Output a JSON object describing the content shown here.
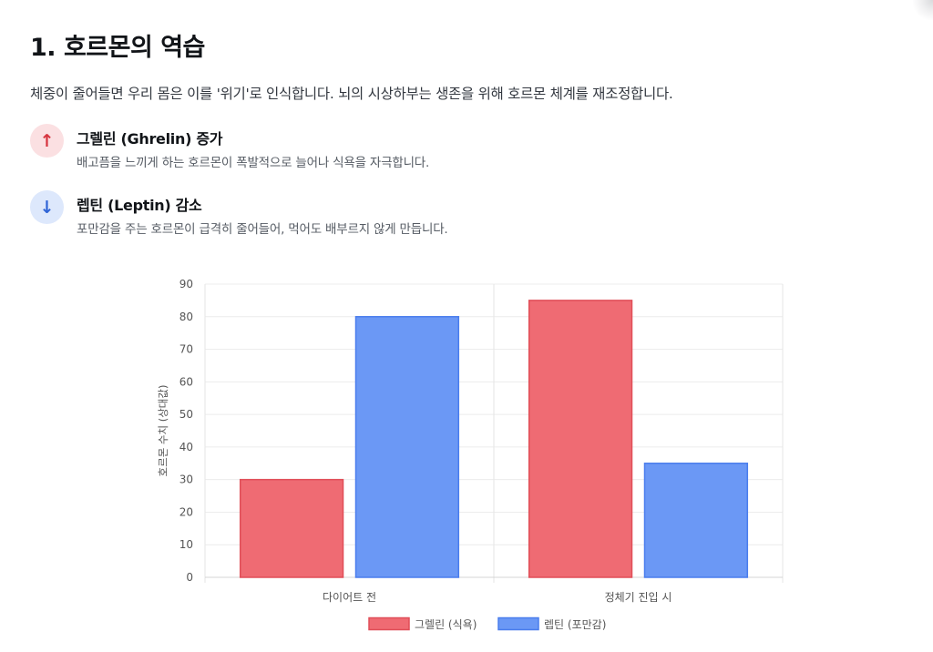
{
  "section": {
    "title": "1. 호르몬의 역습",
    "intro": "체중이 줄어들면 우리 몸은 이를 '위기'로 인식합니다. 뇌의 시상하부는 생존을 위해 호르몬 체계를 재조정합니다."
  },
  "items": [
    {
      "icon": "arrow-up-icon",
      "symbol": "↑",
      "title": "그렐린 (Ghrelin) 증가",
      "desc": "배고픔을 느끼게 하는 호르몬이 폭발적으로 늘어나 식욕을 자극합니다."
    },
    {
      "icon": "arrow-down-icon",
      "symbol": "↓",
      "title": "렙틴 (Leptin) 감소",
      "desc": "포만감을 주는 호르몬이 급격히 줄어들어, 먹어도 배부르지 않게 만듭니다."
    }
  ],
  "colors": {
    "ghrelin": "#ef6b73",
    "leptin": "#6b98f5"
  },
  "chart_data": {
    "type": "bar",
    "categories": [
      "다이어트 전",
      "정체기 진입 시"
    ],
    "series": [
      {
        "name": "그렐린 (식욕)",
        "values": [
          30,
          85
        ],
        "color": "#ef6b73",
        "stroke": "#e04e58"
      },
      {
        "name": "렙틴 (포만감)",
        "values": [
          80,
          35
        ],
        "color": "#6b98f5",
        "stroke": "#4a7ded"
      }
    ],
    "xlabel": "",
    "ylabel": "호르몬 수치 (상대값)",
    "ylim": [
      0,
      90
    ],
    "yticks": [
      0,
      10,
      20,
      30,
      40,
      50,
      60,
      70,
      80,
      90
    ],
    "grid": true,
    "legend": "bottom"
  }
}
